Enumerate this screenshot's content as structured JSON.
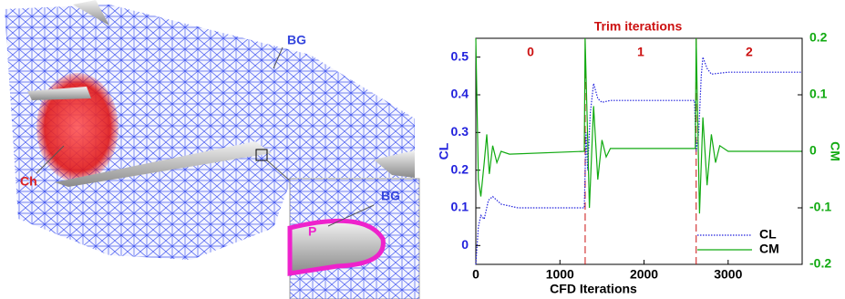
{
  "figure_labels": {
    "background_grid": "BG",
    "chimera": "Ch",
    "inset_background_grid": "BG",
    "patch": "P"
  },
  "chart_data": {
    "type": "line",
    "title": "Trim iterations",
    "xlabel": "CFD Iterations",
    "ylabel": "CL",
    "y2label": "CM",
    "xlim": [
      0,
      3880
    ],
    "xticks": [
      0,
      1000,
      2000,
      3000
    ],
    "ylim": [
      -0.05,
      0.55
    ],
    "yticks": [
      0,
      0.1,
      0.2,
      0.3,
      0.4,
      0.5
    ],
    "y2lim": [
      -0.2,
      0.2
    ],
    "y2ticks": [
      -0.2,
      -0.1,
      0,
      0.1,
      0.2
    ],
    "trim_boundaries": [
      1300,
      2620
    ],
    "trim_labels": [
      "0",
      "1",
      "2"
    ],
    "legend": "lower right",
    "series": [
      {
        "name": "CL",
        "color": "#2222dd",
        "dash": "dotted",
        "x": [
          0,
          30,
          60,
          100,
          150,
          200,
          300,
          500,
          1290,
          1310,
          1330,
          1360,
          1400,
          1450,
          1500,
          1600,
          2600,
          2620,
          2650,
          2680,
          2700,
          2750,
          2800,
          3000,
          3870
        ],
        "values": [
          -0.05,
          0.05,
          0.08,
          0.07,
          0.12,
          0.13,
          0.11,
          0.1,
          0.1,
          0.3,
          0.2,
          0.35,
          0.43,
          0.39,
          0.38,
          0.385,
          0.385,
          0.25,
          0.3,
          0.45,
          0.5,
          0.47,
          0.455,
          0.46,
          0.46
        ]
      },
      {
        "name": "CM",
        "color": "#11aa11",
        "dash": "solid",
        "axis": "y2",
        "x": [
          0,
          30,
          60,
          100,
          130,
          160,
          200,
          250,
          300,
          400,
          1290,
          1300,
          1350,
          1400,
          1450,
          1500,
          1550,
          1600,
          1700,
          2610,
          2620,
          2660,
          2700,
          2750,
          2800,
          2850,
          2900,
          3000,
          3870
        ],
        "values": [
          0.2,
          -0.05,
          -0.08,
          -0.02,
          0.03,
          -0.04,
          0.01,
          -0.02,
          0,
          -0.005,
          0,
          0.2,
          -0.1,
          0.08,
          -0.05,
          0.02,
          -0.01,
          0.005,
          0.005,
          0.005,
          0.2,
          -0.11,
          0.06,
          -0.06,
          0.03,
          -0.02,
          0.01,
          0,
          0
        ]
      }
    ]
  }
}
